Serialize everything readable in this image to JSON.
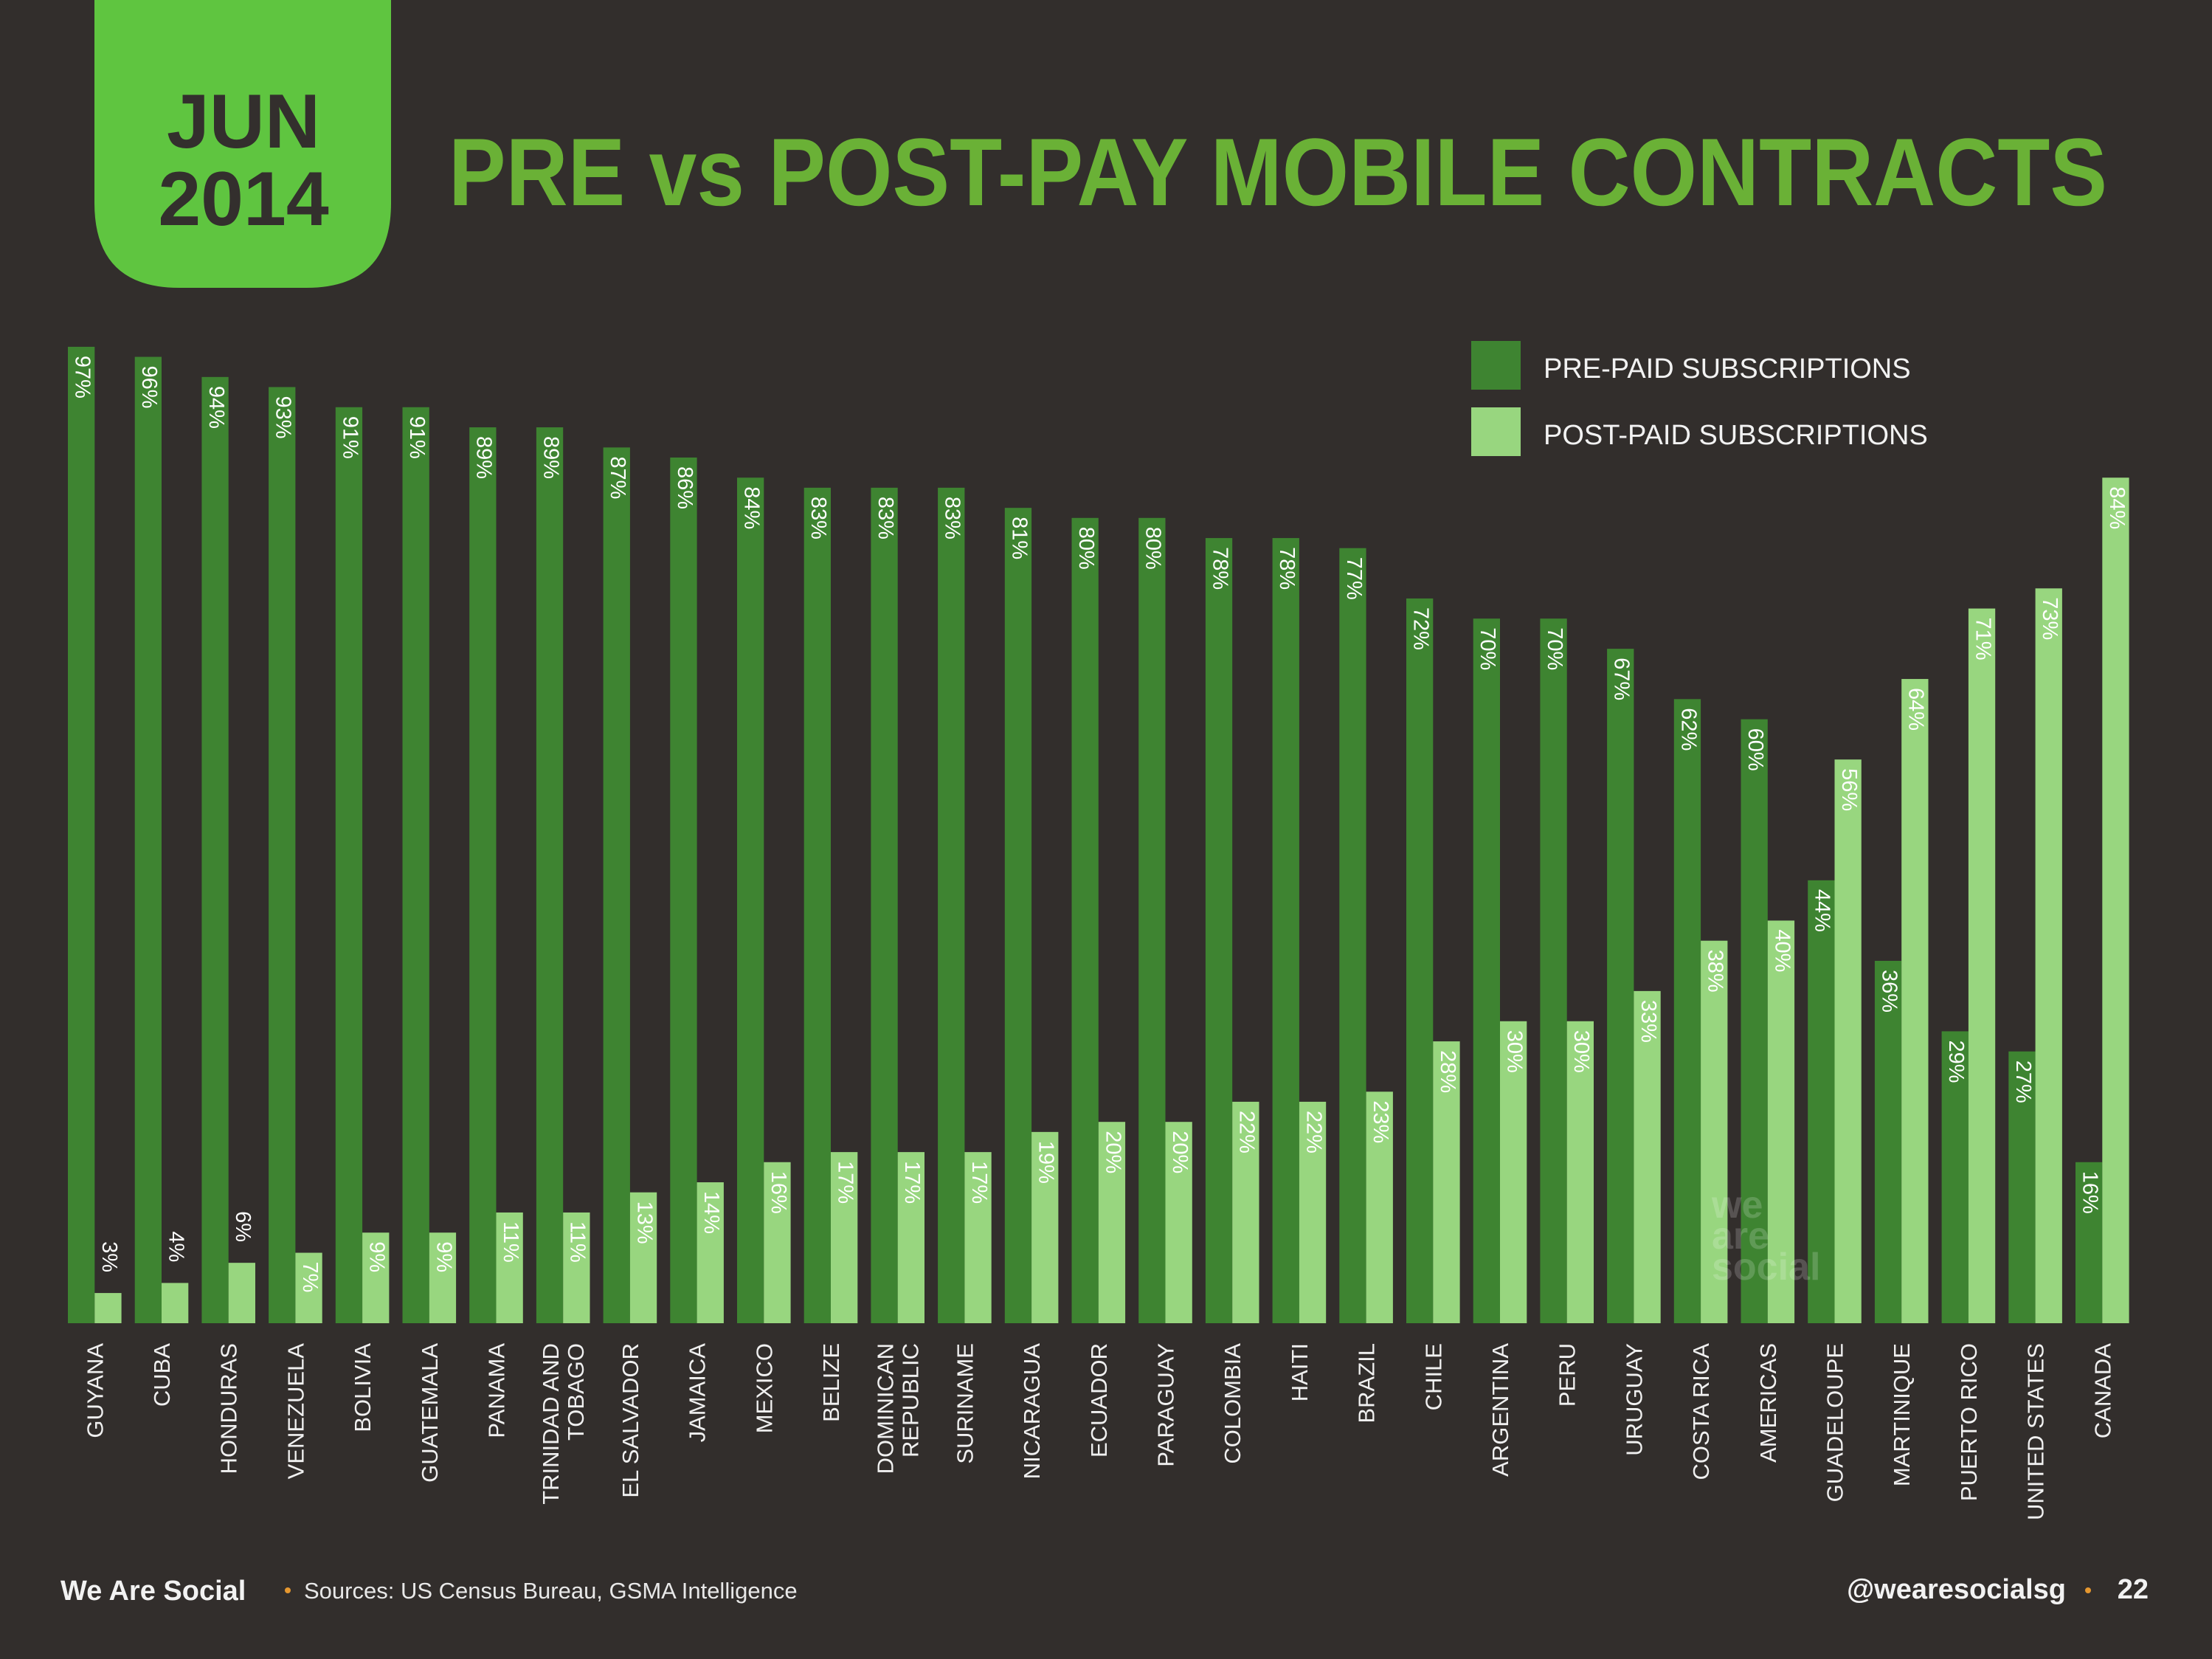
{
  "badge": {
    "month": "JUN",
    "year": "2014"
  },
  "title": "PRE vs POST-PAY MOBILE CONTRACTS",
  "colors": {
    "background": "#322e2c",
    "badge": "#5fc540",
    "title": "#6ab136",
    "prepaid": "#3e8431",
    "postpaid": "#98d67f",
    "dot": "#e5972f"
  },
  "chart_data": {
    "type": "bar",
    "title": "PRE vs POST-PAY MOBILE CONTRACTS",
    "xlabel": "",
    "ylabel": "",
    "ylim": [
      0,
      100
    ],
    "grid": false,
    "legend_placement": "top-right",
    "categories": [
      "GUYANA",
      "CUBA",
      "HONDURAS",
      "VENEZUELA",
      "BOLIVIA",
      "GUATEMALA",
      "PANAMA",
      "TRINIDAD AND TOBAGO",
      "EL SALVADOR",
      "JAMAICA",
      "MEXICO",
      "BELIZE",
      "DOMINICAN REPUBLIC",
      "SURINAME",
      "NICARAGUA",
      "ECUADOR",
      "PARAGUAY",
      "COLOMBIA",
      "HAITI",
      "BRAZIL",
      "CHILE",
      "ARGENTINA",
      "PERU",
      "URUGUAY",
      "COSTA RICA",
      "AMERICAS",
      "GUADELOUPE",
      "MARTINIQUE",
      "PUERTO RICO",
      "UNITED STATES",
      "CANADA"
    ],
    "series": [
      {
        "name": "PRE-PAID SUBSCRIPTIONS",
        "values": [
          97,
          96,
          94,
          93,
          91,
          91,
          89,
          89,
          87,
          86,
          84,
          83,
          83,
          83,
          81,
          80,
          80,
          78,
          78,
          77,
          72,
          70,
          70,
          67,
          62,
          60,
          44,
          36,
          29,
          27,
          16
        ]
      },
      {
        "name": "POST-PAID SUBSCRIPTIONS",
        "values": [
          3,
          4,
          6,
          7,
          9,
          9,
          11,
          11,
          13,
          14,
          16,
          17,
          17,
          17,
          19,
          20,
          20,
          22,
          22,
          23,
          28,
          30,
          30,
          33,
          38,
          40,
          56,
          64,
          71,
          73,
          84
        ]
      }
    ],
    "value_suffix": "%"
  },
  "watermark": [
    "we",
    "are",
    "social"
  ],
  "footer": {
    "brand": "We Are Social",
    "sources": "Sources: US Census Bureau, GSMA Intelligence",
    "handle": "@wearesocialsg",
    "page": "22"
  }
}
